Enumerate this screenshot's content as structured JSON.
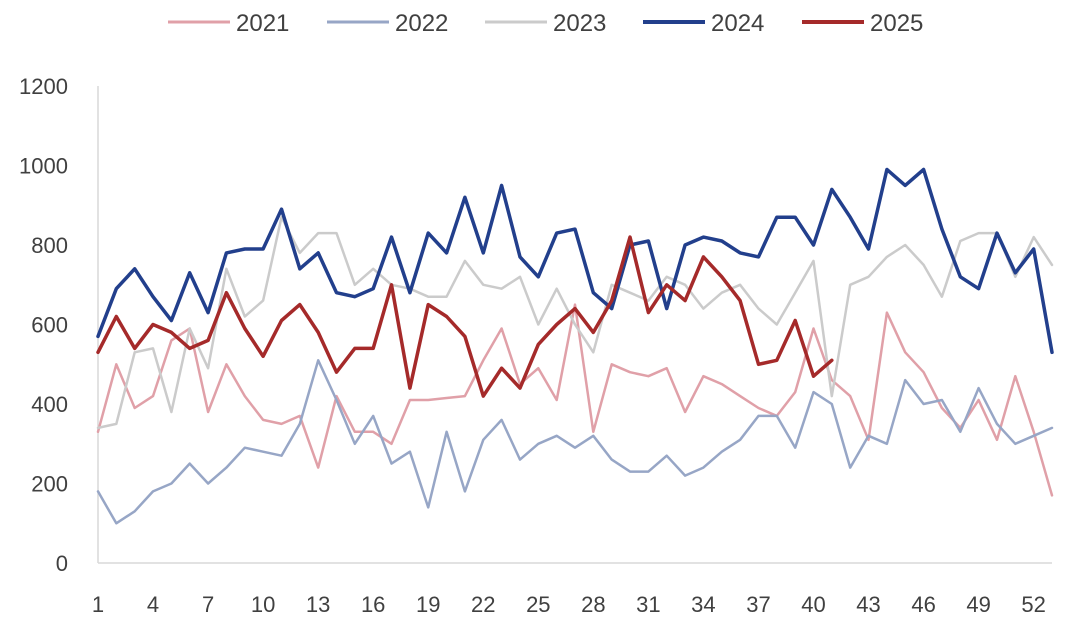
{
  "chart_data": {
    "type": "line",
    "title": "",
    "xlabel": "",
    "ylabel": "",
    "ylim": [
      0,
      1200
    ],
    "yticks": [
      0,
      200,
      400,
      600,
      800,
      1000,
      1200
    ],
    "xlim": [
      1,
      53
    ],
    "xticks": [
      1,
      4,
      7,
      10,
      13,
      16,
      19,
      22,
      25,
      28,
      31,
      34,
      37,
      40,
      43,
      46,
      49,
      52
    ],
    "grid": false,
    "legend_position": "top",
    "series": [
      {
        "name": "2021",
        "color": "#e0a0a8",
        "width": 2.5,
        "x": [
          1,
          2,
          3,
          4,
          5,
          6,
          7,
          8,
          9,
          10,
          11,
          12,
          13,
          14,
          15,
          16,
          17,
          18,
          19,
          20,
          21,
          22,
          23,
          24,
          25,
          26,
          27,
          28,
          29,
          30,
          31,
          32,
          33,
          34,
          35,
          36,
          37,
          38,
          39,
          40,
          41,
          42,
          43,
          44,
          45,
          46,
          47,
          48,
          49,
          50,
          51,
          52,
          53
        ],
        "values": [
          330,
          500,
          390,
          420,
          560,
          590,
          380,
          500,
          420,
          360,
          350,
          370,
          240,
          420,
          330,
          330,
          300,
          410,
          410,
          415,
          420,
          510,
          590,
          450,
          490,
          410,
          650,
          330,
          500,
          480,
          470,
          490,
          380,
          470,
          450,
          420,
          390,
          370,
          430,
          590,
          460,
          420,
          310,
          630,
          530,
          480,
          390,
          340,
          410,
          310,
          470,
          330,
          170
        ]
      },
      {
        "name": "2022",
        "color": "#97a6c6",
        "width": 2.5,
        "x": [
          1,
          2,
          3,
          4,
          5,
          6,
          7,
          8,
          9,
          10,
          11,
          12,
          13,
          14,
          15,
          16,
          17,
          18,
          19,
          20,
          21,
          22,
          23,
          24,
          25,
          26,
          27,
          28,
          29,
          30,
          31,
          32,
          33,
          34,
          35,
          36,
          37,
          38,
          39,
          40,
          41,
          42,
          43,
          44,
          45,
          46,
          47,
          48,
          49,
          50,
          51,
          52,
          53
        ],
        "values": [
          180,
          100,
          130,
          180,
          200,
          250,
          200,
          240,
          290,
          280,
          270,
          350,
          510,
          410,
          300,
          370,
          250,
          280,
          140,
          330,
          180,
          310,
          360,
          260,
          300,
          320,
          290,
          320,
          260,
          230,
          230,
          270,
          220,
          240,
          280,
          310,
          370,
          370,
          290,
          430,
          400,
          240,
          320,
          300,
          460,
          400,
          410,
          330,
          440,
          350,
          300,
          320,
          340
        ]
      },
      {
        "name": "2023",
        "color": "#cbcbcb",
        "width": 2.5,
        "x": [
          1,
          2,
          3,
          4,
          5,
          6,
          7,
          8,
          9,
          10,
          11,
          12,
          13,
          14,
          15,
          16,
          17,
          18,
          19,
          20,
          21,
          22,
          23,
          24,
          25,
          26,
          27,
          28,
          29,
          30,
          31,
          32,
          33,
          34,
          35,
          36,
          37,
          38,
          39,
          40,
          41,
          42,
          43,
          44,
          45,
          46,
          47,
          48,
          49,
          50,
          51,
          52,
          53
        ],
        "values": [
          340,
          350,
          530,
          540,
          380,
          590,
          490,
          740,
          620,
          660,
          870,
          780,
          830,
          830,
          700,
          740,
          700,
          690,
          670,
          670,
          760,
          700,
          690,
          720,
          600,
          690,
          600,
          530,
          700,
          680,
          660,
          720,
          700,
          640,
          680,
          700,
          640,
          600,
          680,
          760,
          420,
          700,
          720,
          770,
          800,
          750,
          670,
          810,
          830,
          830,
          720,
          820,
          750
        ]
      },
      {
        "name": "2024",
        "color": "#223f8c",
        "width": 3.5,
        "x": [
          1,
          2,
          3,
          4,
          5,
          6,
          7,
          8,
          9,
          10,
          11,
          12,
          13,
          14,
          15,
          16,
          17,
          18,
          19,
          20,
          21,
          22,
          23,
          24,
          25,
          26,
          27,
          28,
          29,
          30,
          31,
          32,
          33,
          34,
          35,
          36,
          37,
          38,
          39,
          40,
          41,
          42,
          43,
          44,
          45,
          46,
          47,
          48,
          49,
          50,
          51,
          52,
          53
        ],
        "values": [
          570,
          690,
          740,
          670,
          610,
          730,
          630,
          780,
          790,
          790,
          890,
          740,
          780,
          680,
          670,
          690,
          820,
          680,
          830,
          780,
          920,
          780,
          950,
          770,
          720,
          830,
          840,
          680,
          640,
          800,
          810,
          640,
          800,
          820,
          810,
          780,
          770,
          870,
          870,
          800,
          940,
          870,
          790,
          990,
          950,
          990,
          840,
          720,
          690,
          830,
          730,
          790,
          530
        ]
      },
      {
        "name": "2025",
        "color": "#a52a2a",
        "width": 3.5,
        "x": [
          1,
          2,
          3,
          4,
          5,
          6,
          7,
          8,
          9,
          10,
          11,
          12,
          13,
          14,
          15,
          16,
          17,
          18,
          19,
          20,
          21,
          22,
          23,
          24,
          25,
          26,
          27,
          28,
          29,
          30,
          31,
          32,
          33,
          34,
          35,
          36,
          37,
          38,
          39,
          40,
          41
        ],
        "values": [
          530,
          620,
          540,
          600,
          580,
          540,
          560,
          680,
          590,
          520,
          610,
          650,
          580,
          480,
          540,
          540,
          700,
          440,
          650,
          620,
          570,
          420,
          490,
          440,
          550,
          600,
          640,
          580,
          660,
          820,
          630,
          700,
          660,
          770,
          720,
          660,
          500,
          510,
          610,
          470,
          510
        ]
      }
    ]
  }
}
